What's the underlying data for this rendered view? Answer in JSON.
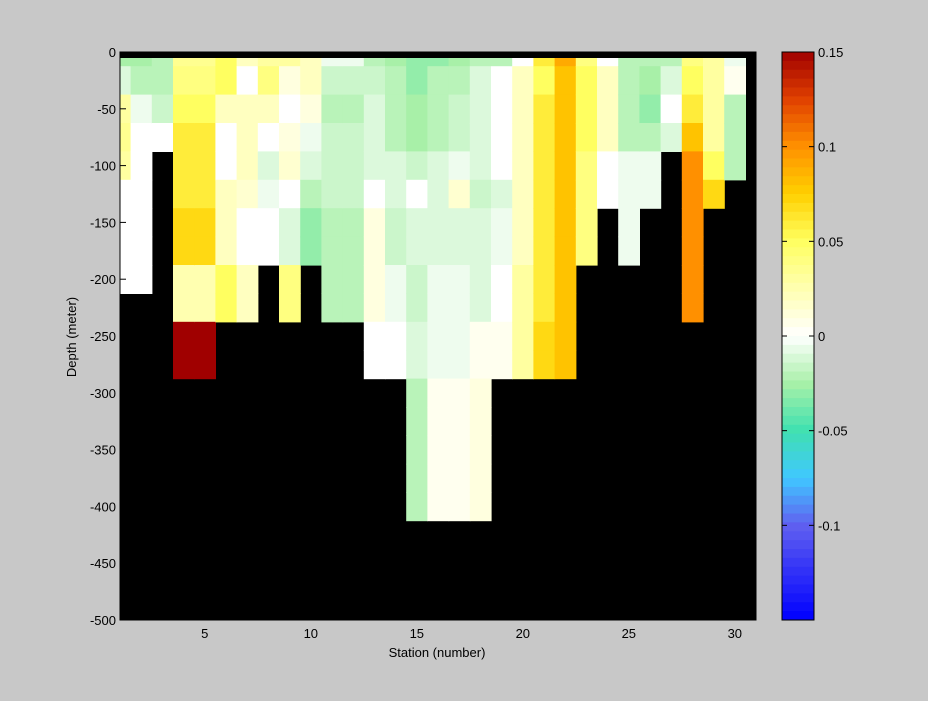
{
  "chart_data": {
    "type": "heatmap",
    "title": "",
    "xlabel": "Station (number)",
    "ylabel": "Depth (meter)",
    "xlim": [
      1,
      31
    ],
    "ylim": [
      -500,
      0
    ],
    "x_ticks": [
      5,
      10,
      15,
      20,
      25,
      30
    ],
    "y_ticks": [
      0,
      -50,
      -100,
      -150,
      -200,
      -250,
      -300,
      -350,
      -400,
      -450,
      -500
    ],
    "background_color": "#000000",
    "colorbar": {
      "range": [
        -0.15,
        0.15
      ],
      "ticks": [
        0.15,
        0.1,
        0.05,
        0,
        -0.05,
        -0.1
      ],
      "tick_labels": [
        "0.15",
        "0.1",
        "0.05",
        "0",
        "-0.05",
        "-0.1"
      ],
      "colormap": [
        [
          -0.15,
          "#0000ff"
        ],
        [
          -0.1,
          "#6060f0"
        ],
        [
          -0.075,
          "#40c8ff"
        ],
        [
          -0.05,
          "#40e0b0"
        ],
        [
          -0.025,
          "#a8f0a8"
        ],
        [
          0,
          "#ffffff"
        ],
        [
          0.025,
          "#ffffb0"
        ],
        [
          0.05,
          "#ffff60"
        ],
        [
          0.075,
          "#ffd000"
        ],
        [
          0.1,
          "#ff9000"
        ],
        [
          0.125,
          "#e04000"
        ],
        [
          0.15,
          "#a00000"
        ]
      ]
    },
    "depth_bins": [
      [
        0,
        -12.5
      ],
      [
        -12.5,
        -37.5
      ],
      [
        -37.5,
        -62.5
      ],
      [
        -62.5,
        -87.5
      ],
      [
        -87.5,
        -112.5
      ],
      [
        -112.5,
        -137.5
      ],
      [
        -137.5,
        -162.5
      ],
      [
        -162.5,
        -187.5
      ],
      [
        -187.5,
        -212.5
      ],
      [
        -212.5,
        -237.5
      ],
      [
        -237.5,
        -262.5
      ],
      [
        -262.5,
        -287.5
      ],
      [
        -287.5,
        -312.5
      ],
      [
        -312.5,
        -337.5
      ],
      [
        -337.5,
        -362.5
      ],
      [
        -362.5,
        -387.5
      ],
      [
        -387.5,
        -412.5
      ]
    ],
    "stations": [
      {
        "station": 1,
        "values": [
          -0.025,
          -0.01,
          0.03,
          0.035,
          0.03,
          0.0,
          0.0,
          0.0,
          0.0
        ]
      },
      {
        "station": 2,
        "values": [
          -0.025,
          -0.02,
          -0.005,
          0.0,
          0.0,
          0.0,
          0.0,
          0.0,
          0.0
        ]
      },
      {
        "station": 3,
        "values": [
          -0.02,
          -0.02,
          -0.015,
          0.0
        ]
      },
      {
        "station": 4,
        "values": [
          0.035,
          0.04,
          0.05,
          0.06,
          0.06,
          0.06,
          0.07,
          0.07,
          0.025,
          0.025,
          0.15,
          0.15
        ]
      },
      {
        "station": 5,
        "values": [
          0.035,
          0.04,
          0.05,
          0.06,
          0.06,
          0.06,
          0.07,
          0.07,
          0.025,
          0.025,
          0.15,
          0.15
        ]
      },
      {
        "station": 6,
        "values": [
          0.05,
          0.05,
          0.02,
          0.0,
          0.0,
          0.02,
          0.02,
          0.02,
          0.05,
          0.05
        ]
      },
      {
        "station": 7,
        "values": [
          0.02,
          0.0,
          0.02,
          0.02,
          0.02,
          0.015,
          0.0,
          0.0,
          0.02,
          0.02
        ]
      },
      {
        "station": 8,
        "values": [
          0.03,
          0.04,
          0.02,
          0.0,
          -0.01,
          -0.005,
          0.0,
          0.0
        ]
      },
      {
        "station": 9,
        "values": [
          0.03,
          0.01,
          0.0,
          0.01,
          0.015,
          0.0,
          -0.01,
          -0.01,
          0.04,
          0.04
        ]
      },
      {
        "station": 10,
        "values": [
          0.02,
          0.02,
          0.01,
          -0.005,
          -0.01,
          -0.02,
          -0.03,
          -0.03
        ]
      },
      {
        "station": 11,
        "values": [
          -0.005,
          -0.015,
          -0.02,
          -0.015,
          -0.015,
          -0.015,
          -0.02,
          -0.02,
          -0.02,
          -0.02
        ]
      },
      {
        "station": 12,
        "values": [
          -0.005,
          -0.015,
          -0.02,
          -0.015,
          -0.015,
          -0.015,
          -0.02,
          -0.02,
          -0.02,
          -0.02
        ]
      },
      {
        "station": 13,
        "values": [
          -0.02,
          -0.015,
          -0.01,
          -0.01,
          -0.01,
          0.0,
          0.01,
          0.01,
          0.01,
          0.01,
          0.0,
          0.0
        ]
      },
      {
        "station": 14,
        "values": [
          -0.025,
          -0.02,
          -0.02,
          -0.02,
          -0.01,
          -0.01,
          -0.015,
          -0.015,
          -0.005,
          -0.005,
          0.0,
          0.0
        ]
      },
      {
        "station": 15,
        "values": [
          -0.03,
          -0.03,
          -0.025,
          -0.025,
          -0.015,
          0.0,
          -0.01,
          -0.01,
          -0.015,
          -0.015,
          -0.01,
          -0.01,
          -0.02,
          -0.02,
          -0.02,
          -0.02,
          -0.02
        ]
      },
      {
        "station": 16,
        "values": [
          -0.03,
          -0.02,
          -0.02,
          -0.02,
          -0.01,
          -0.01,
          -0.01,
          -0.01,
          -0.005,
          -0.005,
          -0.005,
          -0.005,
          0.005,
          0.005,
          0.005,
          0.005,
          0.005
        ]
      },
      {
        "station": 17,
        "values": [
          -0.025,
          -0.02,
          -0.015,
          -0.015,
          -0.005,
          0.015,
          -0.01,
          -0.01,
          -0.005,
          -0.005,
          -0.005,
          -0.005,
          0.005,
          0.005,
          0.005,
          0.005,
          0.005
        ]
      },
      {
        "station": 18,
        "values": [
          -0.02,
          -0.01,
          -0.01,
          -0.01,
          -0.01,
          -0.015,
          -0.01,
          -0.01,
          -0.01,
          -0.01,
          0.005,
          0.005,
          0.01,
          0.01,
          0.01,
          0.01,
          0.01
        ]
      },
      {
        "station": 19,
        "values": [
          -0.02,
          0.0,
          0.0,
          0.0,
          0.0,
          -0.01,
          -0.005,
          -0.005,
          0.0,
          0.0,
          0.005,
          0.005
        ]
      },
      {
        "station": 20,
        "values": [
          0.0,
          0.02,
          0.02,
          0.02,
          0.02,
          0.02,
          0.02,
          0.02,
          0.03,
          0.03,
          0.03,
          0.03
        ]
      },
      {
        "station": 21,
        "values": [
          0.06,
          0.05,
          0.06,
          0.06,
          0.06,
          0.06,
          0.06,
          0.06,
          0.06,
          0.06,
          0.07,
          0.07
        ]
      },
      {
        "station": 22,
        "values": [
          0.09,
          0.08,
          0.08,
          0.08,
          0.08,
          0.08,
          0.08,
          0.08,
          0.08,
          0.08,
          0.08,
          0.08
        ]
      },
      {
        "station": 23,
        "values": [
          0.04,
          0.05,
          0.05,
          0.05,
          0.04,
          0.04,
          0.04,
          0.04
        ]
      },
      {
        "station": 24,
        "values": [
          0.0,
          0.02,
          0.02,
          0.02,
          0.0,
          0.0
        ]
      },
      {
        "station": 25,
        "values": [
          -0.02,
          -0.02,
          -0.02,
          -0.02,
          -0.005,
          -0.005,
          -0.005,
          -0.005
        ]
      },
      {
        "station": 26,
        "values": [
          -0.02,
          -0.025,
          -0.03,
          -0.02,
          -0.005,
          -0.005
        ]
      },
      {
        "station": 27,
        "values": [
          -0.02,
          -0.01,
          0.0,
          -0.01
        ]
      },
      {
        "station": 28,
        "values": [
          0.04,
          0.05,
          0.06,
          0.08,
          0.1,
          0.1,
          0.1,
          0.1,
          0.1,
          0.1
        ]
      },
      {
        "station": 29,
        "values": [
          0.03,
          0.03,
          0.03,
          0.03,
          0.05,
          0.07
        ]
      },
      {
        "station": 30,
        "values": [
          -0.005,
          0.005,
          -0.02,
          -0.02,
          -0.02
        ]
      }
    ]
  }
}
